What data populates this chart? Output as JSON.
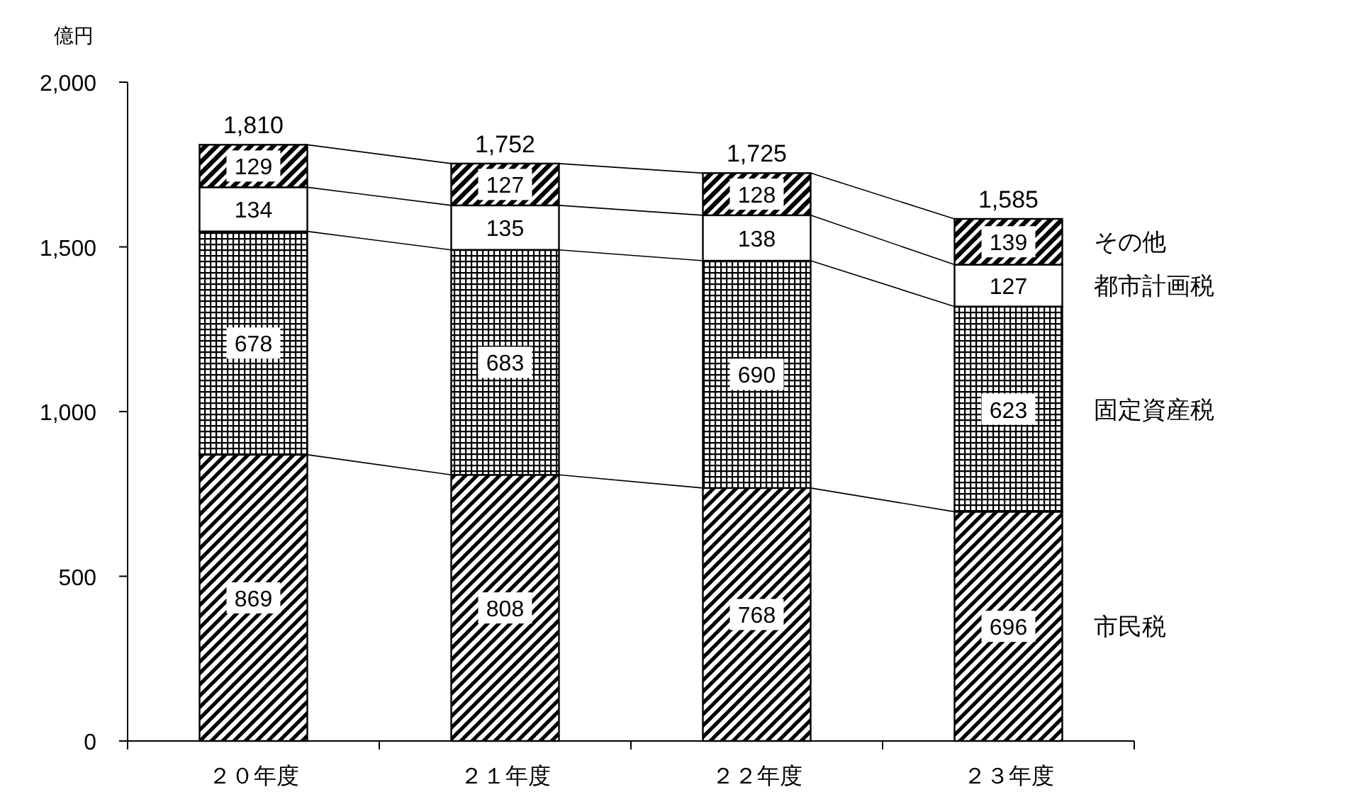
{
  "chart_data": {
    "type": "bar",
    "stacked": true,
    "ylabel": "億円",
    "categories": [
      "２０年度",
      "２１年度",
      "２２年度",
      "２３年度"
    ],
    "series": [
      {
        "name": "市民税",
        "color": "#000000",
        "values": [
          869,
          808,
          768,
          696
        ]
      },
      {
        "name": "固定資産税",
        "color": "#000000",
        "values": [
          678,
          683,
          690,
          623
        ]
      },
      {
        "name": "都市計画税",
        "color": "#ffffff",
        "values": [
          134,
          135,
          138,
          127
        ]
      },
      {
        "name": "その他",
        "color": "#000000",
        "values": [
          129,
          127,
          128,
          139
        ]
      }
    ],
    "totals": [
      "1,810",
      "1,752",
      "1,725",
      "1,585"
    ],
    "data_labels": true,
    "ylim": [
      0,
      2000
    ],
    "yticks": [
      0,
      {
        "value": 500,
        "label": "500"
      },
      {
        "value": 1000,
        "label": "1,000"
      },
      {
        "value": 1500,
        "label": "1,500"
      },
      {
        "value": 2000,
        "label": "2,000"
      }
    ],
    "grid": false,
    "legend": "right"
  }
}
